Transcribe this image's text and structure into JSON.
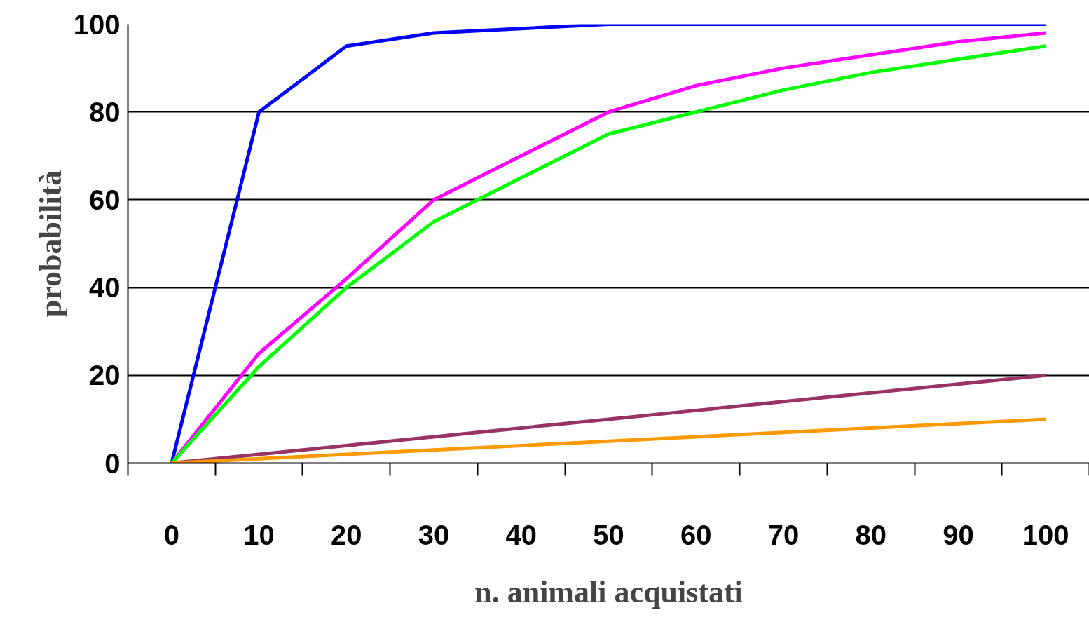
{
  "chart_data": {
    "type": "line",
    "xlabel": "n. animali acquistati",
    "ylabel": "probabilità",
    "categories": [
      "0",
      "10",
      "20",
      "30",
      "40",
      "50",
      "60",
      "70",
      "80",
      "90",
      "100"
    ],
    "series": [
      {
        "color": "#0000ff",
        "values": [
          0,
          80,
          95,
          98,
          99,
          100,
          100,
          100,
          100,
          100,
          100
        ]
      },
      {
        "color": "#ff00ff",
        "values": [
          0,
          25,
          42,
          60,
          70,
          80,
          86,
          90,
          93,
          96,
          98
        ]
      },
      {
        "color": "#00ff00",
        "values": [
          0,
          22,
          40,
          55,
          65,
          75,
          80,
          85,
          89,
          92,
          95
        ]
      },
      {
        "color": "#993366",
        "values": [
          0,
          2,
          4,
          6,
          8,
          10,
          12,
          14,
          16,
          18,
          20
        ]
      },
      {
        "color": "#ff9900",
        "values": [
          0,
          1,
          2,
          3,
          4,
          5,
          6,
          7,
          8,
          9,
          10
        ]
      }
    ],
    "ylim": [
      0,
      100
    ],
    "yticks": [
      0,
      20,
      40,
      60,
      80,
      100
    ],
    "grid": "y",
    "line_style": "solid",
    "marker": "none"
  }
}
